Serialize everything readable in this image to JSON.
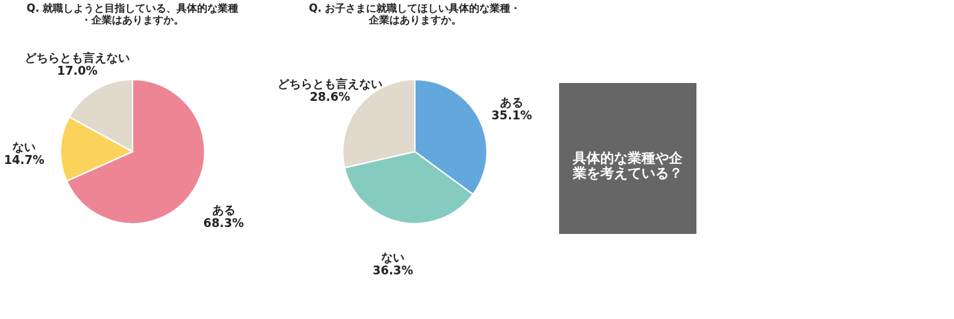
{
  "chart_data": [
    {
      "type": "pie",
      "title": "Q. 就職しようと目指している、具体的な業種・企業はありますか。",
      "categories": [
        "ある",
        "ない",
        "どちらとも言えない"
      ],
      "values": [
        68.3,
        14.7,
        17.0
      ],
      "value_labels": [
        "68.3%",
        "14.7%",
        "17.0%"
      ],
      "colors": [
        "#ee8595",
        "#fcd35a",
        "#e0d9cc"
      ],
      "legend": false
    },
    {
      "type": "pie",
      "title": "Q. お子さまに就職してほしい具体的な業種・企業はありますか。",
      "categories": [
        "ある",
        "ない",
        "どちらとも言えない"
      ],
      "values": [
        35.1,
        36.3,
        28.6
      ],
      "value_labels": [
        "35.1%",
        "36.3%",
        "28.6%"
      ],
      "colors": [
        "#62a8dc",
        "#86cbbf",
        "#e0d9cc"
      ],
      "legend": false
    },
    {
      "type": "other",
      "title": "具体的な業種や企業を考えている？"
    }
  ]
}
